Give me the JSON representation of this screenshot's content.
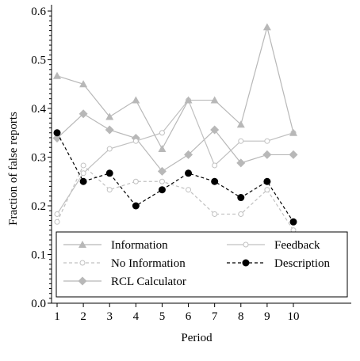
{
  "chart_data": {
    "type": "line",
    "title": "",
    "xlabel": "Period",
    "ylabel": "Fraction of false reports",
    "xlim": [
      0.8,
      10.2
    ],
    "ylim": [
      0,
      0.6
    ],
    "x": [
      1,
      2,
      3,
      4,
      5,
      6,
      7,
      8,
      9,
      10
    ],
    "x_ticks": [
      "1",
      "2",
      "3",
      "4",
      "5",
      "6",
      "7",
      "8",
      "9",
      "10"
    ],
    "y_ticks": [
      "0.0",
      "0.1",
      "0.2",
      "0.3",
      "0.4",
      "0.5",
      "0.6"
    ],
    "grid": false,
    "legend_position": "bottom-inside",
    "series": [
      {
        "name": "Information",
        "values": [
          0.467,
          0.45,
          0.383,
          0.417,
          0.317,
          0.417,
          0.417,
          0.367,
          0.567,
          0.35
        ],
        "color": "#b8b8b8",
        "marker": "triangle",
        "dash": "solid"
      },
      {
        "name": "Feedback",
        "values": [
          0.183,
          0.267,
          0.317,
          0.333,
          0.35,
          0.417,
          0.283,
          0.333,
          0.333,
          0.35
        ],
        "color": "#c0c0c0",
        "marker": "hollow-circle",
        "dash": "solid"
      },
      {
        "name": "No Information",
        "values": [
          0.167,
          0.283,
          0.233,
          0.25,
          0.25,
          0.233,
          0.183,
          0.183,
          0.233,
          0.15
        ],
        "color": "#c0c0c0",
        "marker": "hollow-circle",
        "dash": "dashed"
      },
      {
        "name": "Description",
        "values": [
          0.35,
          0.25,
          0.267,
          0.2,
          0.233,
          0.267,
          0.25,
          0.217,
          0.25,
          0.167
        ],
        "color": "#000000",
        "marker": "filled-circle",
        "dash": "dashed"
      },
      {
        "name": "RCL Calculator",
        "values": [
          0.339,
          0.389,
          0.356,
          0.339,
          0.271,
          0.305,
          0.356,
          0.288,
          0.305,
          0.305
        ],
        "color": "#b8b8b8",
        "marker": "diamond",
        "dash": "solid"
      }
    ],
    "legend_order": [
      "Information",
      "Feedback",
      "No Information",
      "Description",
      "RCL Calculator"
    ]
  }
}
